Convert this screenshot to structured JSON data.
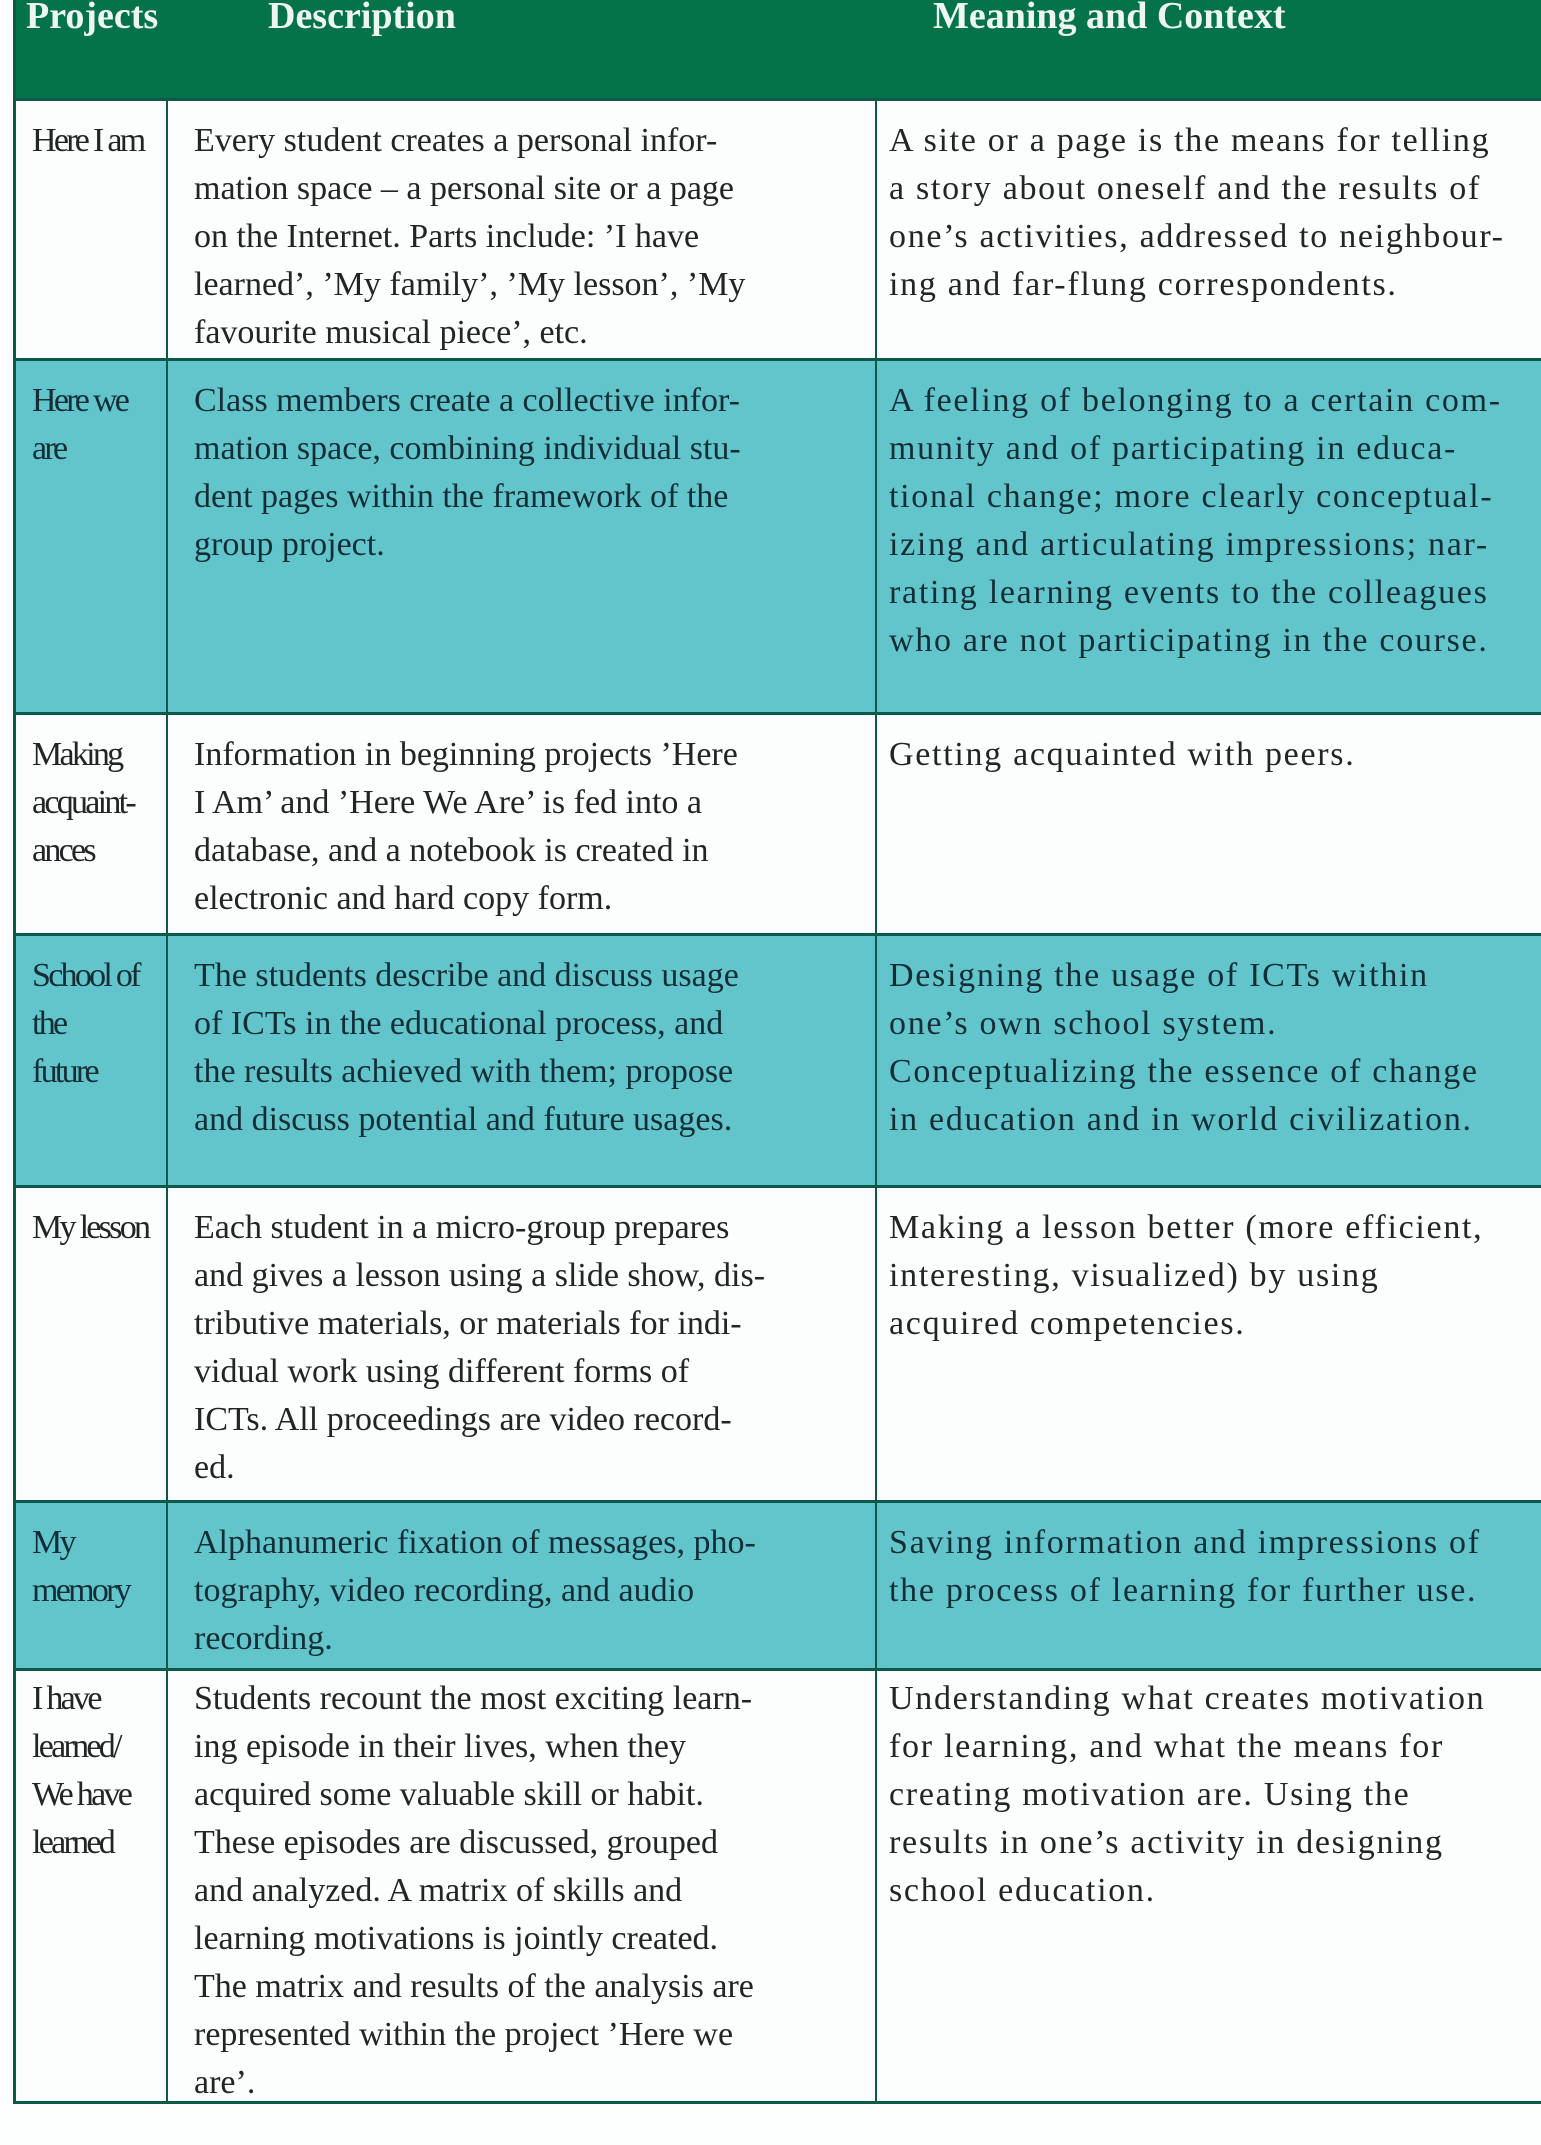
{
  "table": {
    "header": {
      "projects": "Projects",
      "description": "Description",
      "meaning": "Meaning and Context"
    },
    "rows": [
      {
        "project": "Here I am",
        "description": "Every student creates a personal infor-\nmation space – a personal site or a page\non the Internet. Parts include: ’I have\nlearned’, ’My family’, ’My lesson’, ’My\nfavourite musical piece’, etc.",
        "meaning": "A site or a page is the means for telling\na story about oneself and the results of\none’s activities, addressed to neighbour-\ning and far-flung correspondents."
      },
      {
        "project": "Here we are",
        "description": "Class members create a collective infor-\nmation space, combining individual stu-\ndent pages within the framework of the\ngroup project.",
        "meaning": "A feeling of belonging to a certain com-\nmunity and of participating in educa-\ntional change; more clearly conceptual-\nizing and articulating impressions; nar-\nrating learning events to the colleagues\nwho are not participating in the course."
      },
      {
        "project": "Making\nacquaint-\nances",
        "description": "Information in beginning projects ’Here\nI Am’ and ’Here We Are’ is fed into a\ndatabase, and a notebook is created in\nelectronic and hard copy form.",
        "meaning": "Getting acquainted with peers."
      },
      {
        "project": "School of the\nfuture",
        "description": "The students describe and discuss usage\nof ICTs in the educational process, and\nthe results achieved with them; propose\nand discuss potential and future usages.",
        "meaning": "Designing the usage of ICTs within\none’s own school system.\nConceptualizing the essence of change\nin education and in world civilization."
      },
      {
        "project": "My lesson",
        "description": "Each student in a micro-group prepares\nand gives a lesson using a slide show, dis-\ntributive materials, or materials for indi-\nvidual work using different forms of\nICTs. All proceedings are video record-\ned.",
        "meaning": "Making a lesson better (more efficient,\ninteresting, visualized) by using\nacquired competencies."
      },
      {
        "project": "My memory",
        "description": "Alphanumeric fixation of messages, pho-\ntography, video recording, and audio\nrecording.",
        "meaning": "Saving information and impressions of\nthe process of learning for further use."
      },
      {
        "project": "I have\nlearned/\nWe have\nlearned",
        "description": "Students recount the most exciting learn-\ning episode in their lives, when they\nacquired some valuable skill or habit.\nThese episodes are discussed, grouped\nand analyzed. A matrix of skills and\nlearning motivations is jointly created.\nThe matrix and results of the analysis are\nrepresented within the project ’Here we\nare’.",
        "meaning": "Understanding what creates motivation\nfor learning, and what the means for\ncreating motivation are. Using the\nresults in one’s activity in designing\nschool education."
      }
    ]
  },
  "colors": {
    "header_bg": "#057349",
    "teal_row_bg": "#62c5cc",
    "white_row_bg": "#fcfefe",
    "border": "#0c5949",
    "header_text": "#eef6f2",
    "body_text_white_row": "#212526",
    "body_text_teal_row": "#152e36"
  }
}
